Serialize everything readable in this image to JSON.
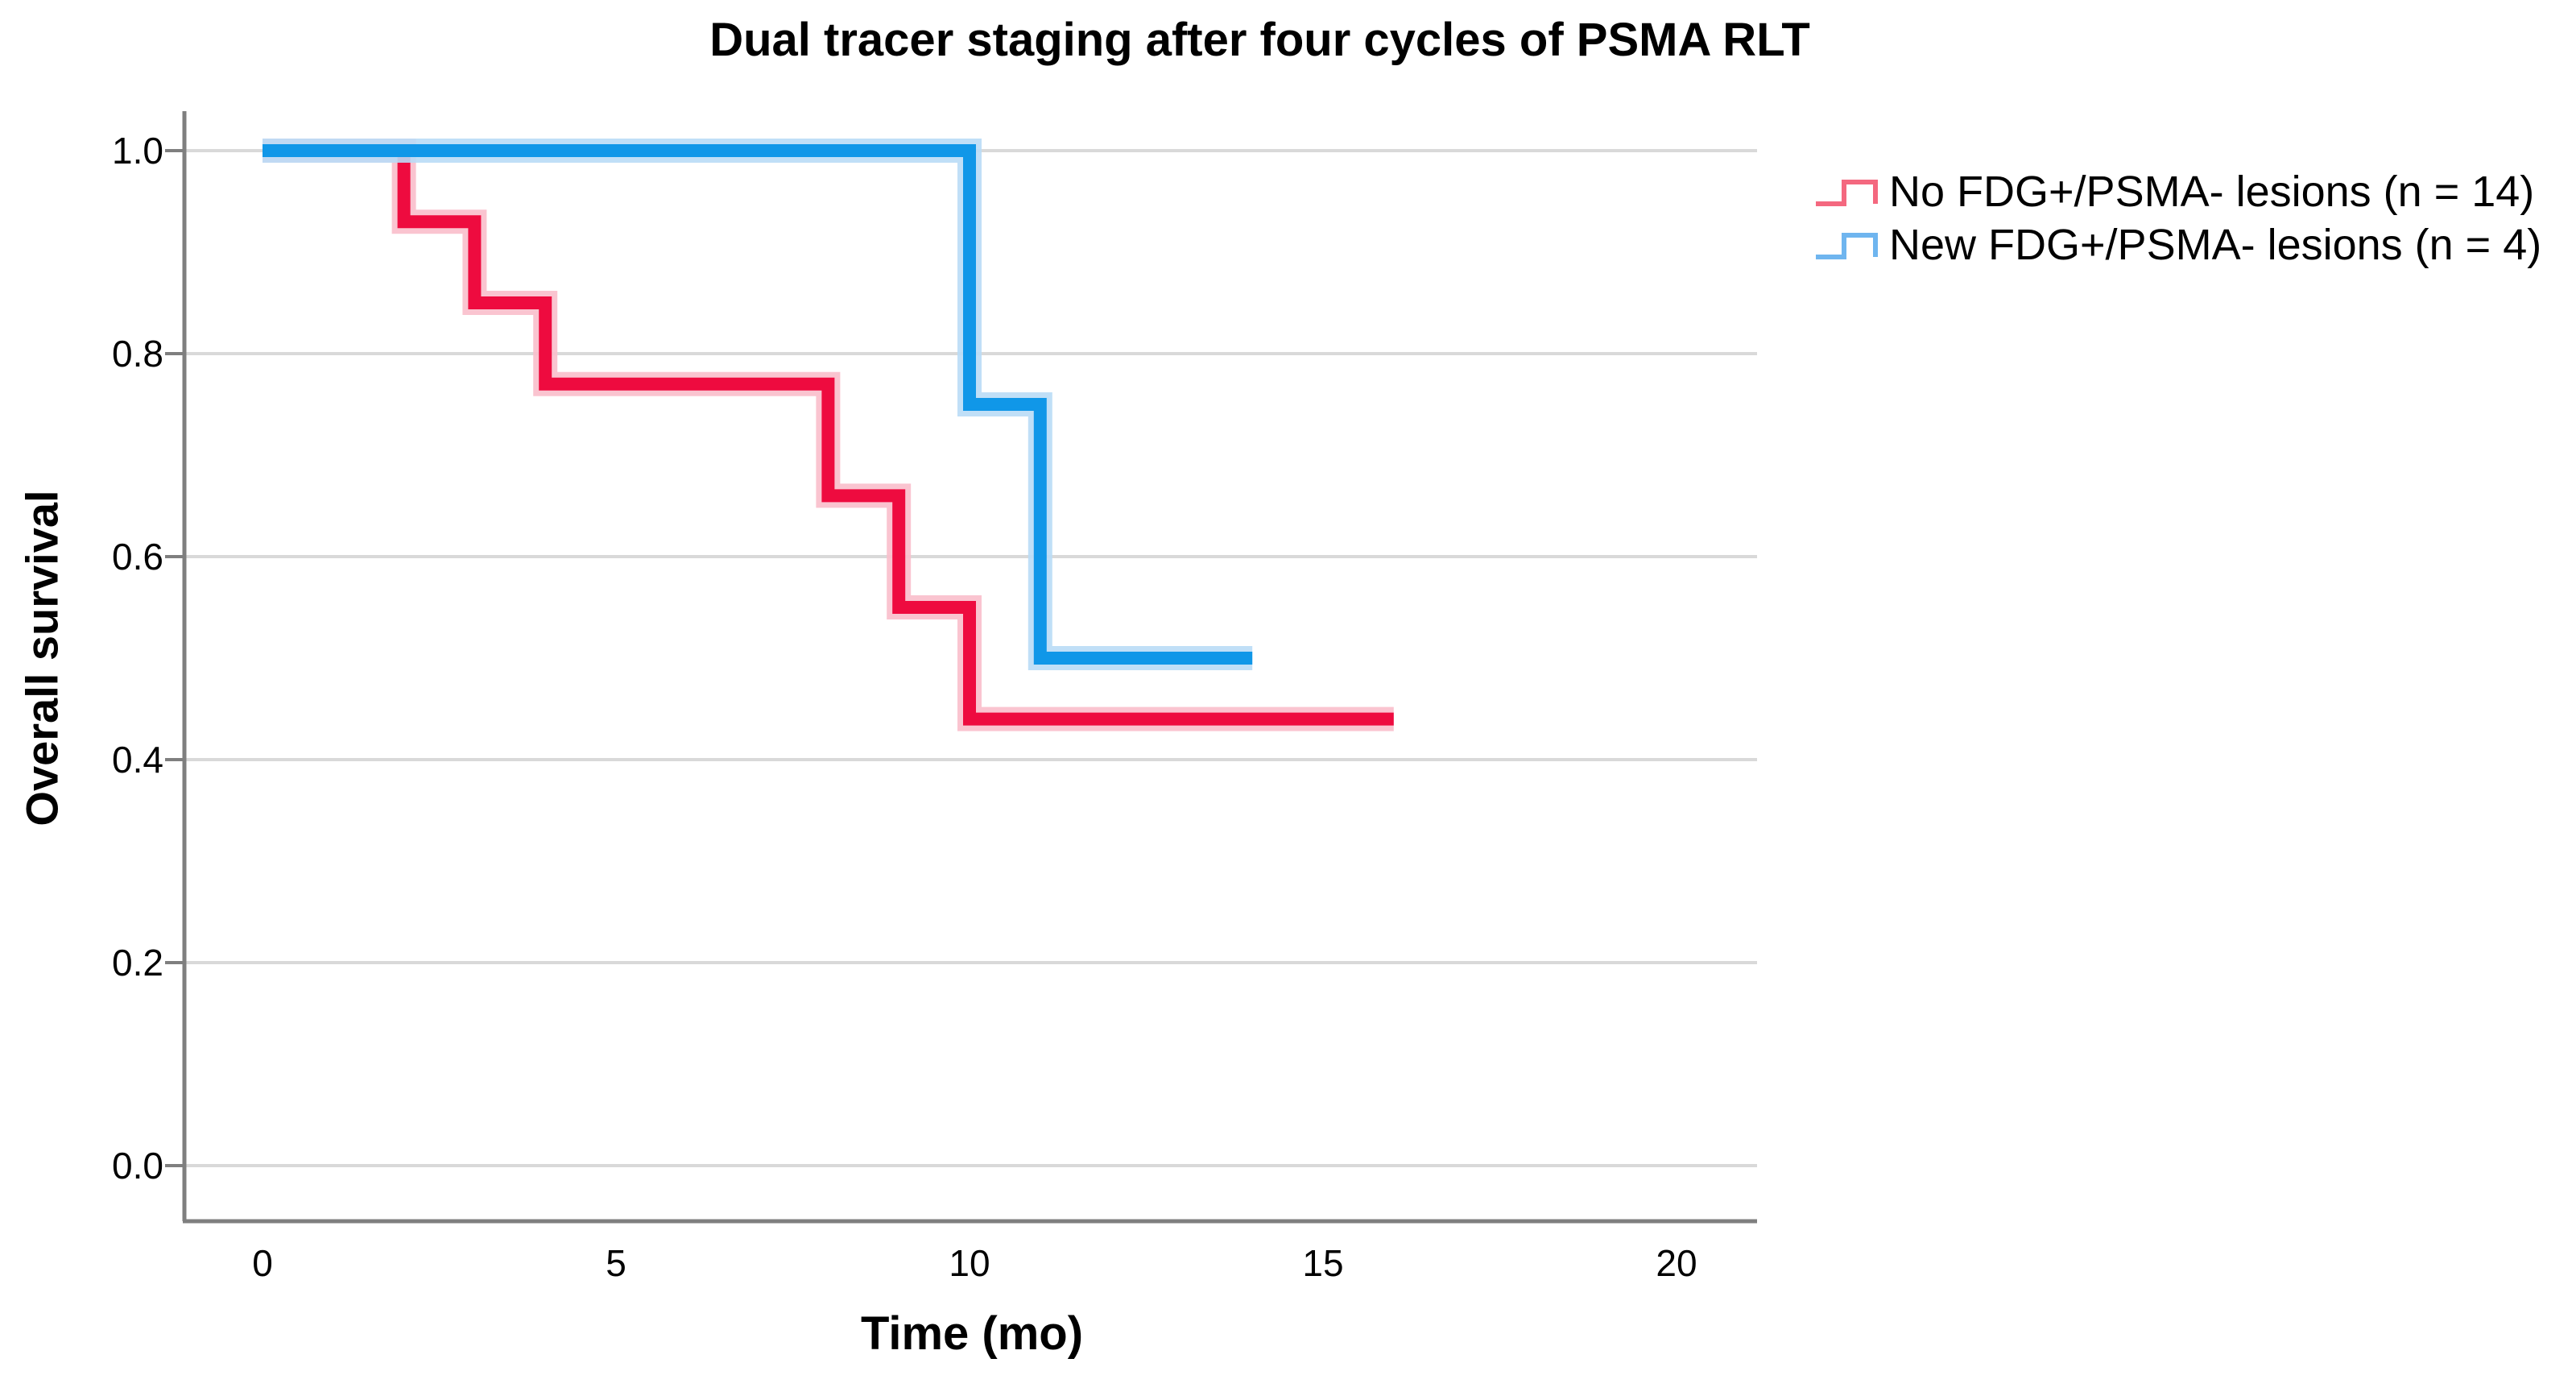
{
  "chart_data": {
    "type": "line",
    "subtype": "kaplan-meier-step",
    "title": "Dual tracer staging after four cycles of PSMA RLT",
    "xlabel": "Time (mo)",
    "ylabel": "Overall survival",
    "xlim": [
      -1.15,
      21.2
    ],
    "ylim": [
      -0.055,
      1.04
    ],
    "grid": "horizontal",
    "legend_position": "top-right-outside",
    "x_ticks": {
      "values": [
        0,
        5,
        10,
        15,
        20
      ],
      "labels": [
        "0",
        "5",
        "10",
        "15",
        "20"
      ]
    },
    "y_ticks": {
      "values": [
        0.0,
        0.2,
        0.4,
        0.6,
        0.8,
        1.0
      ],
      "labels": [
        "0.0",
        "0.2",
        "0.4",
        "0.6",
        "0.8",
        "1.0"
      ]
    },
    "series": [
      {
        "name": "No FDG+/PSMA- lesions (n = 14)",
        "color": "#EE0B3F",
        "halo_color": "#F9BECB",
        "legend_marker_color": "#F4687F",
        "steps": [
          {
            "t": 0,
            "s": 1.0
          },
          {
            "t": 2,
            "s": 0.93
          },
          {
            "t": 3,
            "s": 0.85
          },
          {
            "t": 4,
            "s": 0.77
          },
          {
            "t": 8,
            "s": 0.66
          },
          {
            "t": 9,
            "s": 0.55
          },
          {
            "t": 10,
            "s": 0.44
          }
        ],
        "end_time": 16
      },
      {
        "name": "New FDG+/PSMA- lesions (n = 4)",
        "color": "#1097E8",
        "halo_color": "#B9DBF6",
        "legend_marker_color": "#6FB5EF",
        "steps": [
          {
            "t": 0,
            "s": 1.0
          },
          {
            "t": 10,
            "s": 0.75
          },
          {
            "t": 11,
            "s": 0.5
          }
        ],
        "end_time": 14
      }
    ]
  },
  "colors": {
    "grid": "#D9D9D9",
    "axis": "#7F7F7F",
    "tick_text": "#000000",
    "background": "#FFFFFF"
  }
}
